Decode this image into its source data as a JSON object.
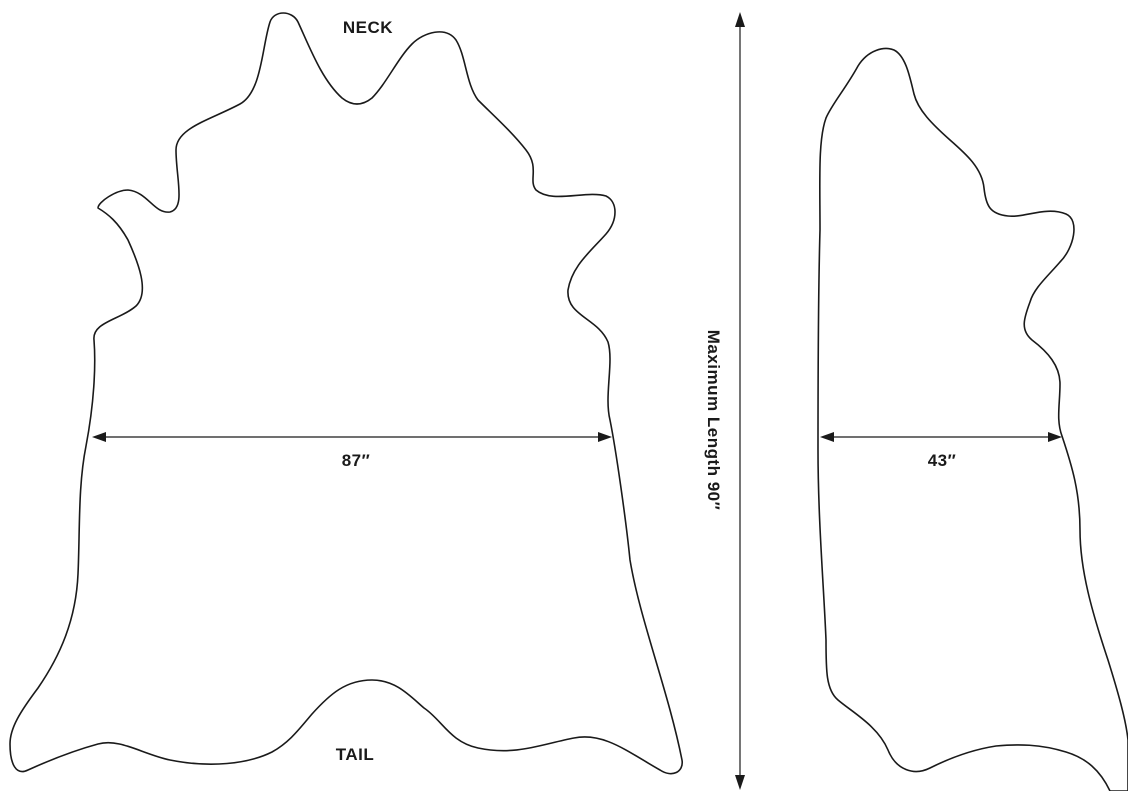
{
  "labels": {
    "neck": "NECK",
    "tail": "TAIL",
    "width_full": "87″",
    "width_half": "43″",
    "max_length": "Maximum Length 90″"
  },
  "colors": {
    "stroke": "#1a1a1a",
    "background": "#ffffff"
  }
}
